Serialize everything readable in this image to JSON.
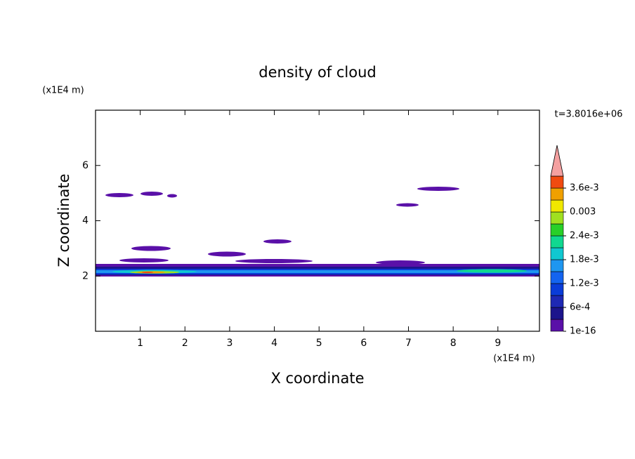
{
  "chart_data": {
    "type": "contour",
    "title": "density of cloud",
    "xlabel": "X coordinate",
    "ylabel": "Z coordinate",
    "xunit": "(x1E4 m)",
    "yunit": "(x1E4 m)",
    "time_label": "t=3.8016e+06",
    "xlim": [
      0,
      9.93
    ],
    "ylim": [
      0,
      8
    ],
    "xticks": [
      1,
      2,
      3,
      4,
      5,
      6,
      7,
      8,
      9
    ],
    "yticks": [
      2,
      4,
      6
    ],
    "colorbar": {
      "levels": [
        1e-16,
        0.0003,
        0.0006,
        0.0009,
        0.0012,
        0.0015,
        0.0018,
        0.0021,
        0.0024,
        0.0027,
        0.003,
        0.0033,
        0.0036,
        0.0039
      ],
      "colors": [
        "#5a10a8",
        "#1c148c",
        "#1e28b4",
        "#0a3cd8",
        "#1464f0",
        "#1e96f0",
        "#10c8d0",
        "#10d890",
        "#28d028",
        "#a0e020",
        "#f0e800",
        "#f0a000",
        "#f04a10"
      ],
      "extend_color": "#f4a0a0",
      "ticks": [
        {
          "value": 1e-16,
          "label": "1e-16"
        },
        {
          "value": 0.0006,
          "label": "6e-4"
        },
        {
          "value": 0.0012,
          "label": "1.2e-3"
        },
        {
          "value": 0.0018,
          "label": "1.8e-3"
        },
        {
          "value": 0.0024,
          "label": "2.4e-3"
        },
        0.003,
        {
          "value": 0.0036,
          "label": "3.6e-3"
        }
      ]
    }
  }
}
